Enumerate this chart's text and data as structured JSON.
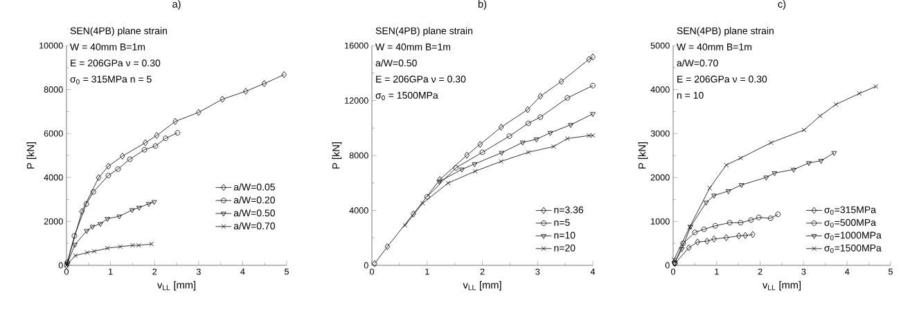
{
  "chart_data": [
    {
      "type": "line",
      "title": "a)",
      "xlabel": "v$_{LL}$ [mm]",
      "ylabel": "P [kN]",
      "annotations": [
        "SEN(4PB)   plane strain",
        "W = 40mm   B=1m",
        "E = 206GPa   ν = 0.30",
        "σ$_{0}$ = 315MPa   n = 5"
      ],
      "xlim": [
        0,
        5
      ],
      "ylim": [
        0,
        10000
      ],
      "xticks": [
        0,
        1,
        2,
        3,
        4,
        5
      ],
      "yticks": [
        0,
        2000,
        4000,
        6000,
        8000,
        10000
      ],
      "legend": "right",
      "series": [
        {
          "name": "a/W=0.05",
          "color": "#000000",
          "marker": "diamond",
          "x": [
            0,
            0.35,
            0.73,
            0.95,
            1.27,
            1.79,
            2.05,
            2.47,
            3.0,
            3.54,
            4.07,
            4.49,
            4.94
          ],
          "values": [
            0,
            2450,
            3990,
            4510,
            4970,
            5580,
            5910,
            6550,
            6960,
            7560,
            7920,
            8270,
            8680
          ]
        },
        {
          "name": "a/W=0.20",
          "color": "#000000",
          "marker": "circle",
          "x": [
            0.02,
            0.18,
            0.45,
            0.61,
            0.95,
            1.17,
            1.44,
            1.77,
            2.02,
            2.25,
            2.52
          ],
          "values": [
            140,
            1340,
            2790,
            3340,
            4090,
            4380,
            4830,
            5260,
            5430,
            5780,
            6030
          ]
        },
        {
          "name": "a/W=0.50",
          "color": "#000000",
          "marker": "triangle",
          "x": [
            0.02,
            0.19,
            0.46,
            0.59,
            0.77,
            0.93,
            1.2,
            1.49,
            1.65,
            1.87,
            1.99
          ],
          "values": [
            80,
            940,
            1570,
            1760,
            1890,
            2120,
            2230,
            2520,
            2630,
            2800,
            2890
          ]
        },
        {
          "name": "a/W=0.70",
          "color": "#000000",
          "marker": "cross",
          "x": [
            0,
            0.2,
            0.47,
            0.63,
            0.93,
            1.22,
            1.5,
            1.64,
            1.93
          ],
          "values": [
            0,
            440,
            580,
            640,
            780,
            850,
            910,
            910,
            970
          ]
        }
      ]
    },
    {
      "type": "line",
      "title": "b)",
      "xlabel": "v$_{LL}$ [mm]",
      "ylabel": "P [kN]",
      "annotations": [
        "SEN(4PB)   plane strain",
        "W = 40mm   B=1m",
        "a/W=0.50",
        "E = 206GPa   ν = 0.30",
        "σ$_{0}$ = 1500MPa"
      ],
      "xlim": [
        0,
        4
      ],
      "ylim": [
        0,
        16000
      ],
      "xticks": [
        0,
        1,
        2,
        3,
        4
      ],
      "yticks": [
        0,
        4000,
        8000,
        12000,
        16000
      ],
      "legend": "bottom right",
      "series": [
        {
          "name": "n=3.36",
          "color": "#000000",
          "marker": "diamond",
          "x": [
            0.05,
            0.28,
            0.75,
            1.23,
            1.72,
            1.96,
            2.34,
            2.82,
            3.05,
            3.43,
            3.93,
            4.0
          ],
          "values": [
            130,
            1360,
            3740,
            6240,
            8020,
            8810,
            10060,
            11340,
            12310,
            13390,
            15000,
            15170
          ]
        },
        {
          "name": "n=5",
          "color": "#000000",
          "marker": "circle",
          "x": [
            1.0,
            1.52,
            2.0,
            2.49,
            2.83,
            3.05,
            3.54,
            4.0
          ],
          "values": [
            4990,
            7100,
            8230,
            9410,
            10340,
            10790,
            12190,
            13090
          ]
        },
        {
          "name": "n=10",
          "color": "#000000",
          "marker": "triangle",
          "x": [
            1.22,
            1.63,
            1.86,
            2.35,
            2.73,
            2.98,
            3.23,
            3.6,
            4.0
          ],
          "values": [
            6100,
            6990,
            7380,
            8200,
            8950,
            9180,
            9650,
            10230,
            11030
          ]
        },
        {
          "name": "n=20",
          "color": "#000000",
          "marker": "cross",
          "x": [
            0.6,
            0.92,
            1.38,
            1.87,
            2.34,
            2.83,
            3.29,
            3.54,
            3.93,
            4.0
          ],
          "values": [
            2910,
            4520,
            5990,
            6850,
            7570,
            8230,
            8650,
            9230,
            9450,
            9450
          ]
        }
      ]
    },
    {
      "type": "line",
      "title": "c)",
      "xlabel": "v$_{LL}$ [mm]",
      "ylabel": "P [kN]",
      "annotations": [
        "SEN(4PB)   plane strain",
        "W = 40mm   B=1m",
        "a/W=0.70",
        "E = 206GPa   ν = 0.30",
        "n = 10"
      ],
      "xlim": [
        0,
        5
      ],
      "ylim": [
        0,
        5000
      ],
      "xticks": [
        0,
        1,
        2,
        3,
        4,
        5
      ],
      "yticks": [
        0,
        1000,
        2000,
        3000,
        4000,
        5000
      ],
      "legend": "bottom right",
      "series": [
        {
          "name": "σ$_{0}$=315MPa",
          "color": "#000000",
          "marker": "diamond",
          "x": [
            0.04,
            0.36,
            0.56,
            0.78,
            0.94,
            1.22,
            1.51,
            1.66,
            1.83
          ],
          "values": [
            40,
            400,
            530,
            550,
            600,
            630,
            670,
            680,
            700
          ]
        },
        {
          "name": "σ$_{0}$=500MPa",
          "color": "#000000",
          "marker": "circle",
          "x": [
            0.04,
            0.23,
            0.5,
            0.71,
            0.97,
            1.3,
            1.55,
            1.79,
            1.97,
            2.24,
            2.41
          ],
          "values": [
            60,
            500,
            750,
            820,
            900,
            970,
            970,
            1030,
            1090,
            1070,
            1160
          ]
        },
        {
          "name": "σ$_{0}$=1000MPa",
          "color": "#000000",
          "marker": "triangle",
          "x": [
            0.03,
            0.2,
            0.4,
            0.76,
            0.94,
            1.27,
            1.57,
            2.14,
            2.33,
            2.77,
            3.12,
            3.4,
            3.7
          ],
          "values": [
            50,
            370,
            880,
            1430,
            1590,
            1690,
            1830,
            2000,
            2100,
            2180,
            2330,
            2380,
            2560
          ]
        },
        {
          "name": "σ$_{0}$=1500MPa",
          "color": "#000000",
          "marker": "cross",
          "x": [
            0.02,
            0.38,
            0.84,
            1.22,
            1.55,
            2.25,
            3.01,
            3.38,
            3.74,
            4.28,
            4.66
          ],
          "values": [
            130,
            870,
            1760,
            2280,
            2440,
            2790,
            3080,
            3400,
            3660,
            3910,
            4070
          ]
        }
      ]
    }
  ]
}
